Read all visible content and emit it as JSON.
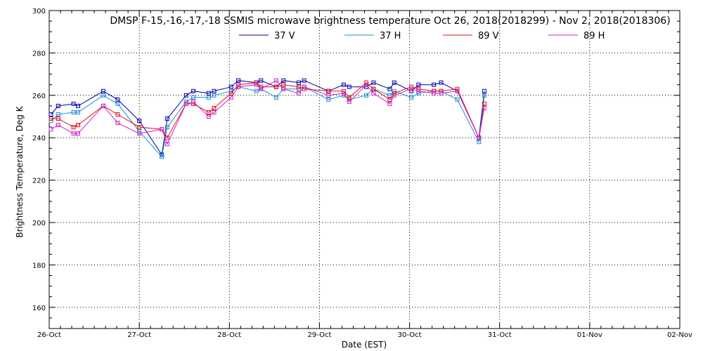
{
  "chart_data": {
    "type": "line",
    "title": "DMSP F-15,-16,-17,-18 SSMIS microwave brightness temperature Oct 26, 2018(2018299) - Nov  2, 2018(2018306)",
    "xlabel": "Date (EST)",
    "ylabel": "Brightness Temperature, Deg K",
    "xlim": [
      "26-Oct",
      "02-Nov"
    ],
    "ylim": [
      150,
      300
    ],
    "x_tick_labels": [
      "26-Oct",
      "27-Oct",
      "28-Oct",
      "29-Oct",
      "30-Oct",
      "31-Oct",
      "01-Nov",
      "02-Nov"
    ],
    "y_ticks": [
      160,
      180,
      200,
      220,
      240,
      260,
      280,
      300
    ],
    "grid": true,
    "legend_position": "top-center",
    "x_unit": "days after 26-Oct 00:00 EST",
    "x": [
      0.02,
      0.1,
      0.27,
      0.32,
      0.6,
      0.76,
      1.0,
      1.25,
      1.31,
      1.52,
      1.6,
      1.77,
      1.83,
      2.02,
      2.1,
      2.3,
      2.35,
      2.52,
      2.6,
      2.77,
      2.83,
      3.1,
      3.27,
      3.33,
      3.52,
      3.6,
      3.78,
      3.83,
      4.02,
      4.1,
      4.27,
      4.35,
      4.53,
      4.77,
      4.83
    ],
    "series": [
      {
        "name": "37 V",
        "color": "#0000aa",
        "values": [
          251,
          255,
          256,
          255,
          262,
          258,
          248,
          232,
          249,
          260,
          262,
          261,
          262,
          264,
          267,
          266,
          267,
          264,
          267,
          266,
          267,
          262,
          265,
          264,
          264,
          266,
          263,
          266,
          262,
          265,
          265,
          266,
          262,
          240,
          262
        ]
      },
      {
        "name": "37 H",
        "color": "#1f8ecf",
        "values": [
          248,
          251,
          252,
          252,
          260,
          256,
          243,
          231,
          245,
          257,
          259,
          259,
          260,
          262,
          264,
          262,
          263,
          259,
          263,
          263,
          264,
          258,
          260,
          258,
          260,
          263,
          260,
          262,
          259,
          261,
          262,
          262,
          258,
          238,
          260
        ]
      },
      {
        "name": "89 V",
        "color": "#dd1111",
        "values": [
          249,
          249,
          245,
          246,
          255,
          251,
          245,
          244,
          240,
          256,
          256,
          252,
          254,
          261,
          265,
          266,
          264,
          264,
          265,
          264,
          263,
          262,
          262,
          259,
          266,
          263,
          258,
          261,
          264,
          263,
          262,
          262,
          263,
          240,
          256
        ]
      },
      {
        "name": "89 H",
        "color": "#cc22cc",
        "values": [
          244,
          246,
          242,
          242,
          255,
          247,
          242,
          244,
          237,
          256,
          257,
          250,
          252,
          259,
          264,
          265,
          263,
          267,
          263,
          261,
          264,
          260,
          261,
          257,
          265,
          261,
          256,
          260,
          263,
          262,
          261,
          261,
          262,
          240,
          254
        ]
      }
    ]
  }
}
